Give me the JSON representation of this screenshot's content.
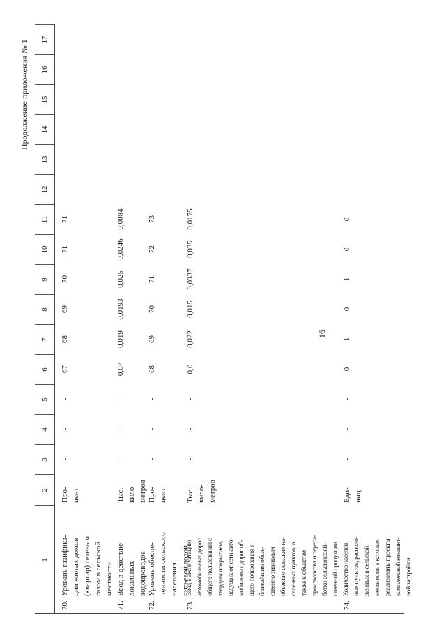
{
  "page_number": "16",
  "continuation": "Продолжение приложения № 1",
  "header": {
    "columns": [
      "1",
      "2",
      "3",
      "4",
      "5",
      "6",
      "7",
      "8",
      "9",
      "10",
      "11",
      "12",
      "13",
      "14",
      "15",
      "16",
      "17"
    ]
  },
  "rows": [
    {
      "number": "70.",
      "name": [
        "Уровень газифика-",
        "ции жилых домов",
        "(квартир) сетевым",
        "газом в сельской",
        "местности"
      ],
      "unit": [
        "Про-",
        "цент"
      ],
      "cells": [
        "-",
        "-",
        "-",
        "67",
        "68",
        "69",
        "70",
        "71",
        "71"
      ]
    },
    {
      "number": "71.",
      "name": [
        "Ввод в действие",
        "локальных",
        "водопроводов"
      ],
      "unit": [
        "Тыс.",
        "кило-",
        "метров"
      ],
      "cells": [
        "-",
        "-",
        "-",
        "0,07",
        "0,019",
        "0,0193",
        "0,025",
        "0,0246",
        "0,0084"
      ]
    },
    {
      "number": "72.",
      "name": [
        "Уровень обеспе-",
        "ченности сельского",
        "населения",
        "питьевой водой"
      ],
      "unit": [
        "Про-",
        "цент"
      ],
      "cells": [
        "-",
        "-",
        "-",
        "68",
        "69",
        "70",
        "71",
        "72",
        "73"
      ]
    },
    {
      "number": "73.",
      "name": [
        "Ввод в эксплуатацию",
        "автомобильных дорог",
        "общего пользования с",
        "твердым покрытием,",
        "ведущих от сети авто-",
        "мобильных дорог об-",
        "щего пользования к",
        "ближайшим обще-",
        "ственно значимым",
        "объектам сельских на-",
        "селенных пунктов, а",
        "также к объектам",
        "производства и перера-",
        "ботки сельскохозяй-",
        "ственной продукции"
      ],
      "unit": [
        "Тыс.",
        "кило-",
        "метров"
      ],
      "cells": [
        "-",
        "-",
        "-",
        "0,0",
        "0,022",
        "0,015",
        "0,0337",
        "0,035",
        "0,0175"
      ]
    },
    {
      "number": "74.",
      "name": [
        "Количество населен-",
        "ных пунктов, располо-",
        "женных в сельской",
        "местности, в которых",
        "реализованы проекты",
        "комплексной компакт-",
        "ной застройки"
      ],
      "unit": [
        "Еди-",
        "ниц"
      ],
      "cells": [
        "-",
        "-",
        "-",
        "0",
        "1",
        "0",
        "1",
        "0",
        "0"
      ]
    }
  ]
}
